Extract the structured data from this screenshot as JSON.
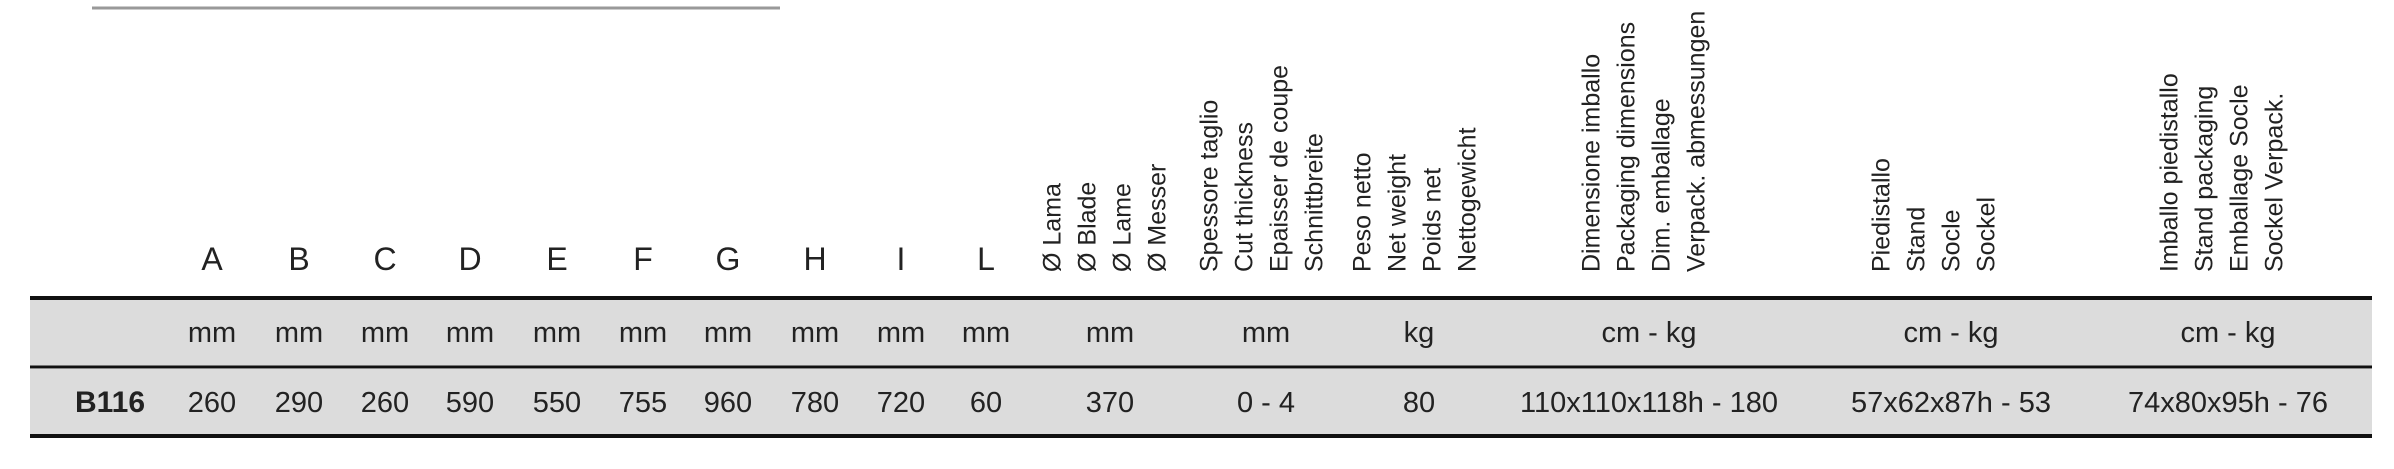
{
  "table": {
    "columns": [
      {
        "header": [
          "A"
        ],
        "unit": "mm"
      },
      {
        "header": [
          "B"
        ],
        "unit": "mm"
      },
      {
        "header": [
          "C"
        ],
        "unit": "mm"
      },
      {
        "header": [
          "D"
        ],
        "unit": "mm"
      },
      {
        "header": [
          "E"
        ],
        "unit": "mm"
      },
      {
        "header": [
          "F"
        ],
        "unit": "mm"
      },
      {
        "header": [
          "G"
        ],
        "unit": "mm"
      },
      {
        "header": [
          "H"
        ],
        "unit": "mm"
      },
      {
        "header": [
          "I"
        ],
        "unit": "mm"
      },
      {
        "header": [
          "L"
        ],
        "unit": "mm"
      },
      {
        "header": [
          "Ø Lama",
          "Ø Blade",
          "Ø Lame",
          "Ø Messer"
        ],
        "unit": "mm"
      },
      {
        "header": [
          "Spessore taglio",
          "Cut thickness",
          "Epaisser de coupe",
          "Schnittbreite"
        ],
        "unit": "mm"
      },
      {
        "header": [
          "Peso netto",
          "Net weight",
          "Poids net",
          "Nettogewicht"
        ],
        "unit": "kg"
      },
      {
        "header": [
          "Dimensione imballo",
          "Packaging dimensions",
          "Dim. emballage",
          "Verpack. abmessungen"
        ],
        "unit": "cm - kg"
      },
      {
        "header": [
          "Piedistallo",
          "Stand",
          "Socle",
          "Sockel"
        ],
        "unit": "cm - kg"
      },
      {
        "header": [
          "Imballo piedistallo",
          "Stand packaging",
          "Emballage Socle",
          "Sockel Verpack."
        ],
        "unit": "cm - kg"
      }
    ],
    "rows": [
      {
        "model": "B116",
        "values": [
          260,
          290,
          260,
          590,
          550,
          755,
          960,
          780,
          720,
          60,
          370,
          "0 - 4",
          80,
          "110x110x118h - 180",
          "57x62x87h - 53",
          "74x80x95h - 76"
        ]
      }
    ]
  }
}
